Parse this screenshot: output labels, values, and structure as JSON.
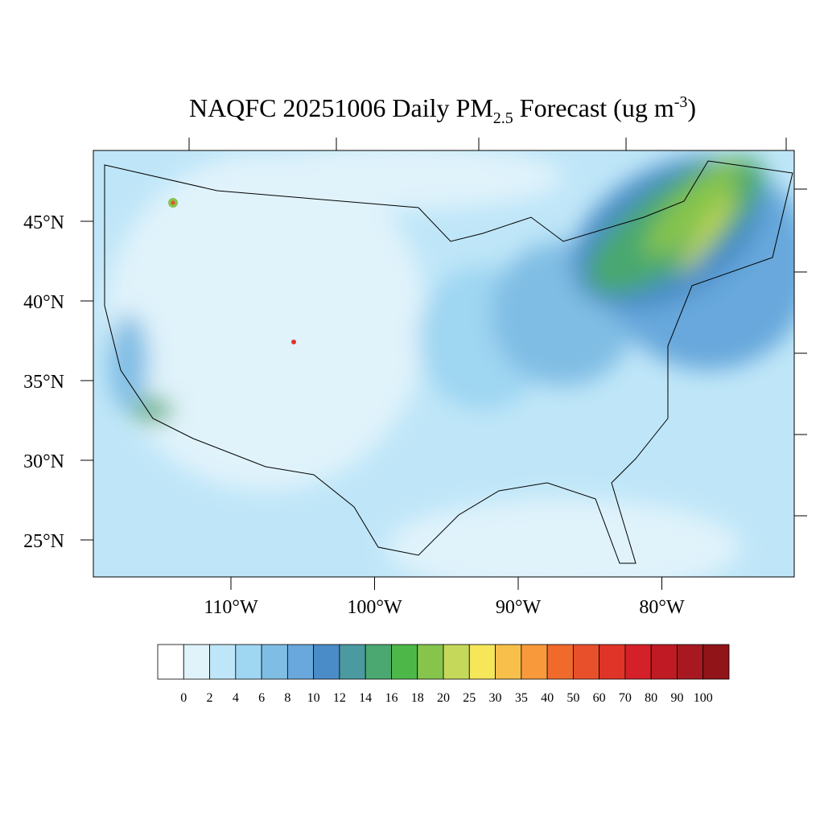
{
  "map": {
    "title": {
      "main": "NAQFC 20251006 Daily PM",
      "sub": "2.5",
      "rest": " Forecast (ug m",
      "sup": "-3",
      "close": ")"
    },
    "lat_labels": [
      "45°N",
      "40°N",
      "35°N",
      "30°N",
      "25°N"
    ],
    "lon_labels": [
      "110°W",
      "100°W",
      "90°W",
      "80°W"
    ],
    "colorbar": {
      "levels": [
        0,
        2,
        4,
        6,
        8,
        10,
        12,
        14,
        16,
        18,
        20,
        25,
        30,
        35,
        40,
        50,
        60,
        70,
        80,
        90,
        100
      ],
      "colors": [
        "#ffffff",
        "#e0f3fb",
        "#bfe6f8",
        "#9fd6f2",
        "#80bde4",
        "#68a8dc",
        "#4a8cc8",
        "#4a9aa0",
        "#4aa870",
        "#4db848",
        "#86c44c",
        "#c6d85a",
        "#f5e65a",
        "#f8c04a",
        "#f89a3c",
        "#f06a2c",
        "#e8502c",
        "#e03428",
        "#d42028",
        "#c01a24",
        "#a81820",
        "#901418"
      ]
    }
  }
}
